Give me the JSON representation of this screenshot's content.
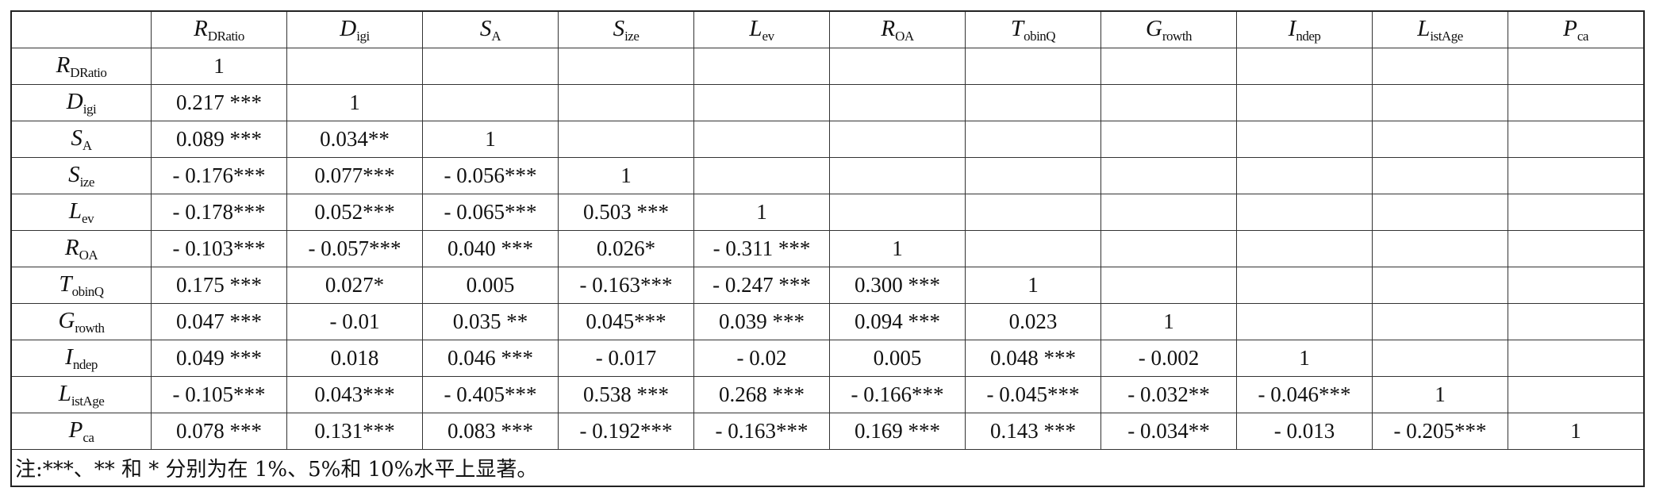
{
  "table": {
    "variables": [
      {
        "main": "R",
        "sub": "DRatio"
      },
      {
        "main": "D",
        "sub": "igi"
      },
      {
        "main": "S",
        "sub": "A"
      },
      {
        "main": "S",
        "sub": "ize"
      },
      {
        "main": "L",
        "sub": "ev"
      },
      {
        "main": "R",
        "sub": "OA"
      },
      {
        "main": "T",
        "sub": "obinQ"
      },
      {
        "main": "G",
        "sub": "rowth"
      },
      {
        "main": "I",
        "sub": "ndep"
      },
      {
        "main": "L",
        "sub": "istAge"
      },
      {
        "main": "P",
        "sub": "ca"
      }
    ],
    "rows": [
      [
        "1"
      ],
      [
        "0.217 ***",
        "1"
      ],
      [
        "0.089 ***",
        "0.034**",
        "1"
      ],
      [
        "- 0.176***",
        "0.077***",
        "- 0.056***",
        "1"
      ],
      [
        "- 0.178***",
        "0.052***",
        "- 0.065***",
        "0.503 ***",
        "1"
      ],
      [
        "- 0.103***",
        "- 0.057***",
        "0.040 ***",
        "0.026*",
        "- 0.311 ***",
        "1"
      ],
      [
        "0.175 ***",
        "0.027*",
        "0.005",
        "- 0.163***",
        "- 0.247 ***",
        "0.300 ***",
        "1"
      ],
      [
        "0.047 ***",
        "- 0.01",
        "0.035 **",
        "0.045***",
        "0.039 ***",
        "0.094 ***",
        "0.023",
        "1"
      ],
      [
        "0.049 ***",
        "0.018",
        "0.046 ***",
        "- 0.017",
        "- 0.02",
        "0.005",
        "0.048 ***",
        "- 0.002",
        "1"
      ],
      [
        "- 0.105***",
        "0.043***",
        "- 0.405***",
        "0.538 ***",
        "0.268 ***",
        "- 0.166***",
        "- 0.045***",
        "- 0.032**",
        "- 0.046***",
        "1"
      ],
      [
        "0.078 ***",
        "0.131***",
        "0.083 ***",
        "- 0.192***",
        "- 0.163***",
        "0.169 ***",
        "0.143 ***",
        "- 0.034**",
        "- 0.013",
        "- 0.205***",
        "1"
      ]
    ],
    "note": "注:***、** 和 * 分别为在 1%、5%和 10%水平上显著。"
  }
}
